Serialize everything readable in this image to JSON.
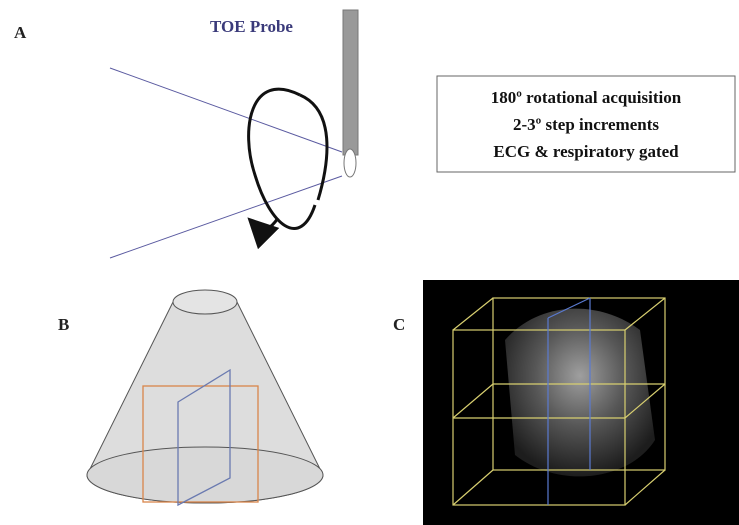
{
  "panels": [
    {
      "label": "A",
      "probe_label": "TOE Probe",
      "notes": [
        "180º rotational acquisition",
        "2-3º step increments",
        "ECG & respiratory gated"
      ]
    },
    {
      "label": "B"
    },
    {
      "label": "C"
    }
  ]
}
